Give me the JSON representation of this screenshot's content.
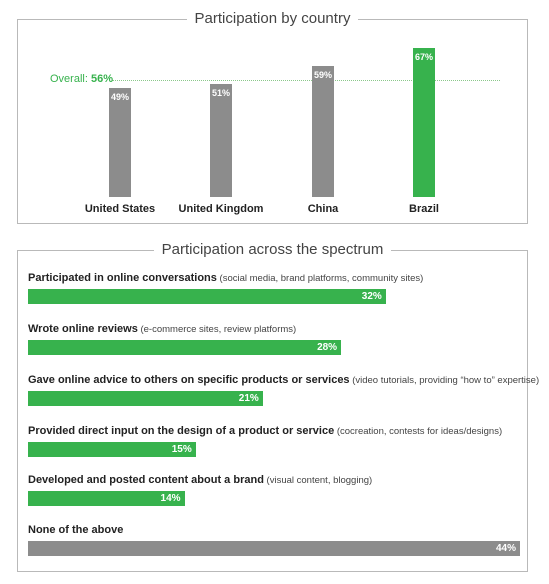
{
  "colors": {
    "green": "#37b24d",
    "gray": "#8c8c8c"
  },
  "chart_data": [
    {
      "type": "bar",
      "title": "Participation by country",
      "categories": [
        "United States",
        "United Kingdom",
        "China",
        "Brazil"
      ],
      "values": [
        49,
        51,
        59,
        67
      ],
      "value_labels": [
        "49%",
        "51%",
        "59%",
        "67%"
      ],
      "bar_colors": [
        "gray",
        "gray",
        "gray",
        "green"
      ],
      "reference_line": {
        "label": "Overall:",
        "value": 56,
        "value_label": "56%"
      },
      "ylim": [
        0,
        67
      ]
    },
    {
      "type": "bar",
      "orientation": "horizontal",
      "title": "Participation across the spectrum",
      "categories": [
        "Participated in online conversations",
        "Wrote online reviews",
        "Gave online advice to others on specific products or services",
        "Provided direct input on the design of a product or service",
        "Developed and posted content about a brand",
        "None of the above"
      ],
      "details": [
        "(social media, brand platforms, community sites)",
        "(e-commerce sites, review platforms)",
        "(video tutorials, providing “how to” expertise)",
        "(cocreation, contests for ideas/designs)",
        "(visual content, blogging)",
        ""
      ],
      "values": [
        32,
        28,
        21,
        15,
        14,
        44
      ],
      "value_labels": [
        "32%",
        "28%",
        "21%",
        "15%",
        "14%",
        "44%"
      ],
      "bar_colors": [
        "green",
        "green",
        "green",
        "green",
        "green",
        "gray"
      ],
      "xlim": [
        0,
        44
      ]
    }
  ]
}
